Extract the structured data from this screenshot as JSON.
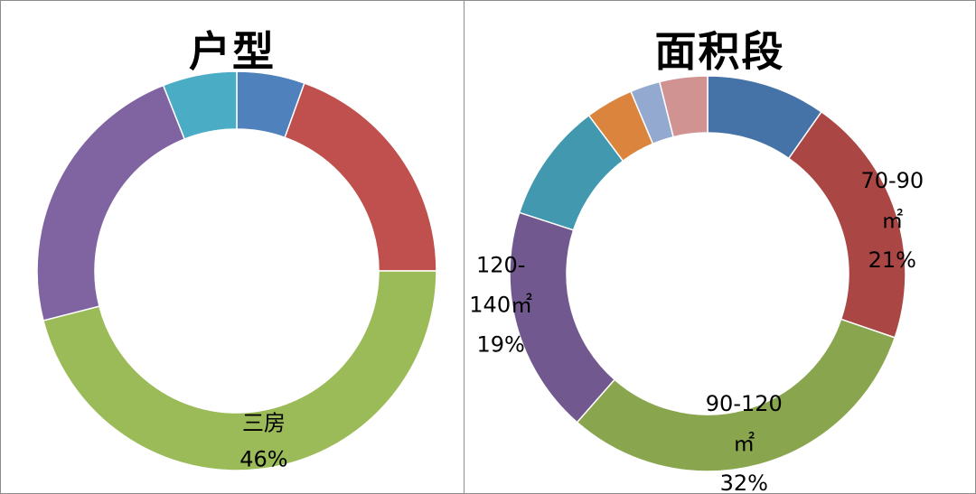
{
  "chart_data": [
    {
      "type": "pie",
      "variant": "donut",
      "title": "户型",
      "categories": [
        "",
        "",
        "三房",
        "",
        ""
      ],
      "values": [
        5.5,
        19.5,
        46,
        23,
        6
      ],
      "colors": [
        "#4f81bd",
        "#c0504d",
        "#9bbb59",
        "#8064a2",
        "#4bacc6"
      ],
      "data_labels": [
        null,
        null,
        {
          "category": "三房",
          "percent": "46%"
        },
        null,
        null
      ]
    },
    {
      "type": "pie",
      "variant": "donut",
      "title": "面积段",
      "categories": [
        "",
        "70-90㎡",
        "90-120㎡",
        "120-140㎡",
        "",
        "",
        "",
        ""
      ],
      "values": [
        10,
        21,
        32,
        19,
        10,
        4,
        2.5,
        4
      ],
      "colors": [
        "#4572a7",
        "#aa4643",
        "#89a54e",
        "#71588f",
        "#4198af",
        "#db843d",
        "#93a9cf",
        "#d19392"
      ],
      "data_labels": [
        null,
        {
          "lines": [
            "70-90",
            "㎡",
            "21%"
          ]
        },
        {
          "lines": [
            "90-120",
            "㎡",
            "32%"
          ]
        },
        {
          "lines": [
            "120-",
            "140㎡",
            "19%"
          ]
        },
        null,
        null,
        null,
        null
      ]
    }
  ]
}
